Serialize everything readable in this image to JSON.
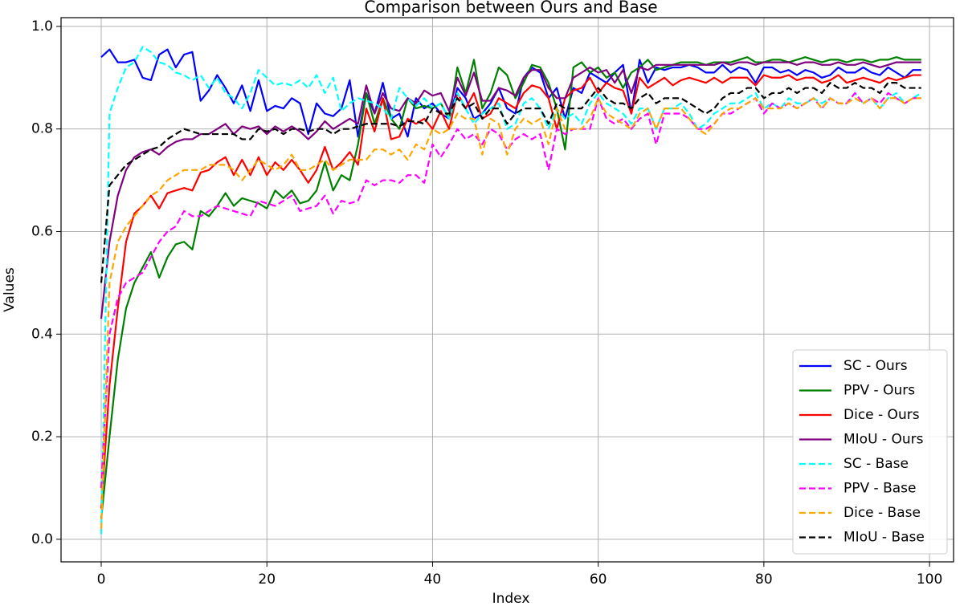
{
  "chart_data": {
    "type": "line",
    "title": "Comparison between Ours and Base",
    "xlabel": "Index",
    "ylabel": "Values",
    "x": [
      0,
      1,
      2,
      3,
      4,
      5,
      6,
      7,
      8,
      9,
      10,
      11,
      12,
      13,
      14,
      15,
      16,
      17,
      18,
      19,
      20,
      21,
      22,
      23,
      24,
      25,
      26,
      27,
      28,
      29,
      30,
      31,
      32,
      33,
      34,
      35,
      36,
      37,
      38,
      39,
      40,
      41,
      42,
      43,
      44,
      45,
      46,
      47,
      48,
      49,
      50,
      51,
      52,
      53,
      54,
      55,
      56,
      57,
      58,
      59,
      60,
      61,
      62,
      63,
      64,
      65,
      66,
      67,
      68,
      69,
      70,
      71,
      72,
      73,
      74,
      75,
      76,
      77,
      78,
      79,
      80,
      81,
      82,
      83,
      84,
      85,
      86,
      87,
      88,
      89,
      90,
      91,
      92,
      93,
      94,
      95,
      96,
      97,
      98,
      99
    ],
    "series": [
      {
        "name": "SC - Ours",
        "color": "#0000ff",
        "linestyle": "solid",
        "values": [
          0.94,
          0.955,
          0.93,
          0.93,
          0.935,
          0.9,
          0.895,
          0.945,
          0.955,
          0.92,
          0.945,
          0.95,
          0.855,
          0.875,
          0.905,
          0.88,
          0.85,
          0.885,
          0.835,
          0.895,
          0.835,
          0.845,
          0.84,
          0.86,
          0.85,
          0.79,
          0.85,
          0.83,
          0.825,
          0.84,
          0.895,
          0.785,
          0.87,
          0.83,
          0.89,
          0.82,
          0.83,
          0.785,
          0.86,
          0.84,
          0.85,
          0.83,
          0.82,
          0.88,
          0.86,
          0.82,
          0.83,
          0.85,
          0.88,
          0.84,
          0.83,
          0.9,
          0.92,
          0.91,
          0.86,
          0.88,
          0.82,
          0.88,
          0.87,
          0.91,
          0.9,
          0.89,
          0.91,
          0.925,
          0.83,
          0.935,
          0.89,
          0.92,
          0.915,
          0.92,
          0.92,
          0.925,
          0.92,
          0.91,
          0.91,
          0.925,
          0.91,
          0.92,
          0.915,
          0.89,
          0.92,
          0.92,
          0.91,
          0.915,
          0.905,
          0.915,
          0.91,
          0.9,
          0.905,
          0.92,
          0.91,
          0.91,
          0.92,
          0.91,
          0.905,
          0.92,
          0.91,
          0.9,
          0.915,
          0.915
        ]
      },
      {
        "name": "PPV - Ours",
        "color": "#008000",
        "linestyle": "solid",
        "values": [
          0.04,
          0.2,
          0.35,
          0.45,
          0.5,
          0.53,
          0.56,
          0.51,
          0.55,
          0.575,
          0.58,
          0.565,
          0.64,
          0.63,
          0.65,
          0.675,
          0.65,
          0.665,
          0.66,
          0.655,
          0.645,
          0.68,
          0.665,
          0.68,
          0.655,
          0.66,
          0.68,
          0.735,
          0.68,
          0.71,
          0.7,
          0.77,
          0.87,
          0.81,
          0.86,
          0.82,
          0.8,
          0.86,
          0.84,
          0.845,
          0.84,
          0.85,
          0.82,
          0.92,
          0.87,
          0.935,
          0.84,
          0.87,
          0.92,
          0.905,
          0.86,
          0.89,
          0.925,
          0.92,
          0.89,
          0.84,
          0.76,
          0.92,
          0.93,
          0.91,
          0.92,
          0.9,
          0.91,
          0.88,
          0.91,
          0.92,
          0.935,
          0.915,
          0.92,
          0.925,
          0.93,
          0.93,
          0.93,
          0.925,
          0.93,
          0.93,
          0.93,
          0.935,
          0.94,
          0.93,
          0.93,
          0.935,
          0.935,
          0.93,
          0.935,
          0.94,
          0.935,
          0.93,
          0.935,
          0.935,
          0.93,
          0.935,
          0.935,
          0.93,
          0.935,
          0.935,
          0.94,
          0.935,
          0.935,
          0.935
        ]
      },
      {
        "name": "Dice - Ours",
        "color": "#ff0000",
        "linestyle": "solid",
        "values": [
          0.06,
          0.3,
          0.45,
          0.58,
          0.635,
          0.65,
          0.67,
          0.645,
          0.675,
          0.68,
          0.685,
          0.68,
          0.715,
          0.72,
          0.735,
          0.745,
          0.71,
          0.74,
          0.71,
          0.745,
          0.71,
          0.735,
          0.72,
          0.74,
          0.72,
          0.695,
          0.72,
          0.765,
          0.72,
          0.735,
          0.755,
          0.73,
          0.84,
          0.795,
          0.86,
          0.78,
          0.785,
          0.82,
          0.81,
          0.82,
          0.8,
          0.835,
          0.8,
          0.87,
          0.84,
          0.87,
          0.82,
          0.83,
          0.86,
          0.85,
          0.84,
          0.87,
          0.885,
          0.88,
          0.86,
          0.8,
          0.86,
          0.875,
          0.88,
          0.9,
          0.87,
          0.89,
          0.88,
          0.875,
          0.83,
          0.9,
          0.88,
          0.89,
          0.9,
          0.885,
          0.895,
          0.9,
          0.895,
          0.89,
          0.9,
          0.89,
          0.9,
          0.9,
          0.9,
          0.885,
          0.905,
          0.9,
          0.9,
          0.905,
          0.895,
          0.9,
          0.9,
          0.89,
          0.895,
          0.905,
          0.89,
          0.895,
          0.9,
          0.895,
          0.89,
          0.9,
          0.895,
          0.9,
          0.905,
          0.905
        ]
      },
      {
        "name": "MIoU - Ours",
        "color": "#800080",
        "linestyle": "solid",
        "values": [
          0.43,
          0.58,
          0.67,
          0.72,
          0.745,
          0.755,
          0.76,
          0.75,
          0.765,
          0.775,
          0.78,
          0.78,
          0.79,
          0.79,
          0.8,
          0.81,
          0.79,
          0.805,
          0.8,
          0.805,
          0.79,
          0.805,
          0.795,
          0.805,
          0.795,
          0.78,
          0.795,
          0.815,
          0.8,
          0.81,
          0.82,
          0.81,
          0.885,
          0.83,
          0.87,
          0.84,
          0.835,
          0.86,
          0.85,
          0.875,
          0.865,
          0.87,
          0.835,
          0.9,
          0.865,
          0.91,
          0.855,
          0.855,
          0.88,
          0.875,
          0.865,
          0.9,
          0.915,
          0.915,
          0.88,
          0.86,
          0.86,
          0.9,
          0.91,
          0.92,
          0.91,
          0.915,
          0.89,
          0.915,
          0.87,
          0.92,
          0.915,
          0.925,
          0.925,
          0.925,
          0.925,
          0.925,
          0.925,
          0.925,
          0.925,
          0.93,
          0.925,
          0.93,
          0.93,
          0.925,
          0.93,
          0.93,
          0.93,
          0.93,
          0.925,
          0.93,
          0.93,
          0.925,
          0.925,
          0.93,
          0.925,
          0.925,
          0.93,
          0.925,
          0.92,
          0.925,
          0.93,
          0.93,
          0.93,
          0.93
        ]
      },
      {
        "name": "SC - Base",
        "color": "#00ffff",
        "linestyle": "dashed",
        "values": [
          0.01,
          0.83,
          0.88,
          0.92,
          0.93,
          0.96,
          0.95,
          0.93,
          0.925,
          0.91,
          0.905,
          0.895,
          0.905,
          0.88,
          0.9,
          0.87,
          0.86,
          0.84,
          0.87,
          0.915,
          0.9,
          0.885,
          0.89,
          0.885,
          0.895,
          0.88,
          0.905,
          0.87,
          0.9,
          0.835,
          0.85,
          0.86,
          0.855,
          0.85,
          0.84,
          0.82,
          0.88,
          0.86,
          0.845,
          0.86,
          0.84,
          0.85,
          0.82,
          0.87,
          0.84,
          0.81,
          0.83,
          0.84,
          0.85,
          0.8,
          0.81,
          0.85,
          0.86,
          0.84,
          0.8,
          0.84,
          0.82,
          0.83,
          0.81,
          0.85,
          0.87,
          0.85,
          0.84,
          0.83,
          0.81,
          0.84,
          0.84,
          0.8,
          0.84,
          0.84,
          0.85,
          0.83,
          0.8,
          0.81,
          0.83,
          0.84,
          0.85,
          0.85,
          0.86,
          0.87,
          0.84,
          0.85,
          0.84,
          0.86,
          0.85,
          0.85,
          0.86,
          0.85,
          0.86,
          0.85,
          0.85,
          0.87,
          0.85,
          0.86,
          0.84,
          0.86,
          0.87,
          0.85,
          0.86,
          0.87
        ]
      },
      {
        "name": "PPV - Base",
        "color": "#ff00ff",
        "linestyle": "dashed",
        "values": [
          0.1,
          0.4,
          0.47,
          0.5,
          0.51,
          0.52,
          0.55,
          0.58,
          0.6,
          0.61,
          0.64,
          0.63,
          0.63,
          0.64,
          0.65,
          0.645,
          0.64,
          0.635,
          0.63,
          0.66,
          0.655,
          0.65,
          0.66,
          0.67,
          0.64,
          0.645,
          0.65,
          0.67,
          0.635,
          0.66,
          0.655,
          0.66,
          0.7,
          0.69,
          0.7,
          0.7,
          0.695,
          0.71,
          0.71,
          0.695,
          0.77,
          0.745,
          0.77,
          0.8,
          0.78,
          0.79,
          0.77,
          0.8,
          0.79,
          0.76,
          0.78,
          0.79,
          0.78,
          0.79,
          0.72,
          0.8,
          0.79,
          0.8,
          0.8,
          0.8,
          0.86,
          0.82,
          0.81,
          0.82,
          0.8,
          0.82,
          0.83,
          0.77,
          0.83,
          0.83,
          0.83,
          0.82,
          0.8,
          0.8,
          0.81,
          0.83,
          0.83,
          0.84,
          0.85,
          0.86,
          0.83,
          0.85,
          0.84,
          0.85,
          0.84,
          0.85,
          0.86,
          0.84,
          0.86,
          0.85,
          0.85,
          0.87,
          0.85,
          0.86,
          0.85,
          0.87,
          0.86,
          0.85,
          0.86,
          0.86
        ]
      },
      {
        "name": "Dice - Base",
        "color": "#ffa500",
        "linestyle": "dashed",
        "values": [
          0.02,
          0.5,
          0.58,
          0.61,
          0.63,
          0.65,
          0.67,
          0.68,
          0.7,
          0.71,
          0.72,
          0.72,
          0.72,
          0.73,
          0.73,
          0.73,
          0.72,
          0.7,
          0.72,
          0.74,
          0.73,
          0.72,
          0.73,
          0.75,
          0.72,
          0.72,
          0.73,
          0.74,
          0.72,
          0.73,
          0.74,
          0.74,
          0.74,
          0.76,
          0.76,
          0.75,
          0.76,
          0.74,
          0.77,
          0.76,
          0.8,
          0.79,
          0.8,
          0.83,
          0.82,
          0.82,
          0.75,
          0.82,
          0.81,
          0.75,
          0.8,
          0.82,
          0.81,
          0.82,
          0.77,
          0.84,
          0.8,
          0.8,
          0.8,
          0.82,
          0.86,
          0.83,
          0.82,
          0.81,
          0.8,
          0.83,
          0.84,
          0.8,
          0.84,
          0.84,
          0.84,
          0.82,
          0.8,
          0.79,
          0.81,
          0.83,
          0.84,
          0.84,
          0.85,
          0.86,
          0.84,
          0.84,
          0.84,
          0.85,
          0.84,
          0.85,
          0.86,
          0.84,
          0.86,
          0.85,
          0.85,
          0.86,
          0.85,
          0.86,
          0.84,
          0.86,
          0.86,
          0.85,
          0.86,
          0.86
        ]
      },
      {
        "name": "MIoU - Base",
        "color": "#000000",
        "linestyle": "dashed",
        "values": [
          0.5,
          0.69,
          0.71,
          0.73,
          0.74,
          0.75,
          0.76,
          0.765,
          0.78,
          0.79,
          0.8,
          0.795,
          0.79,
          0.79,
          0.79,
          0.79,
          0.79,
          0.78,
          0.78,
          0.8,
          0.795,
          0.8,
          0.79,
          0.8,
          0.8,
          0.795,
          0.8,
          0.8,
          0.79,
          0.8,
          0.8,
          0.805,
          0.81,
          0.81,
          0.81,
          0.81,
          0.805,
          0.815,
          0.815,
          0.81,
          0.84,
          0.83,
          0.83,
          0.86,
          0.84,
          0.85,
          0.82,
          0.84,
          0.84,
          0.81,
          0.83,
          0.84,
          0.84,
          0.84,
          0.81,
          0.85,
          0.84,
          0.84,
          0.84,
          0.86,
          0.88,
          0.86,
          0.85,
          0.85,
          0.84,
          0.86,
          0.87,
          0.85,
          0.86,
          0.86,
          0.86,
          0.85,
          0.84,
          0.83,
          0.84,
          0.86,
          0.87,
          0.87,
          0.88,
          0.88,
          0.86,
          0.87,
          0.87,
          0.88,
          0.87,
          0.88,
          0.88,
          0.87,
          0.89,
          0.88,
          0.88,
          0.89,
          0.88,
          0.88,
          0.87,
          0.89,
          0.89,
          0.88,
          0.88,
          0.88
        ]
      }
    ],
    "xlim": [
      -4.85,
      102.9
    ],
    "xticks": [
      0,
      20,
      40,
      60,
      80,
      100
    ],
    "ylim": [
      -0.044,
      1.017
    ],
    "yticks": [
      {
        "value": 0,
        "label": "0.0"
      },
      0.2,
      0.4,
      0.6,
      0.8,
      {
        "value": 1,
        "label": "1.0"
      }
    ],
    "grid": true,
    "legend": "lower right"
  }
}
